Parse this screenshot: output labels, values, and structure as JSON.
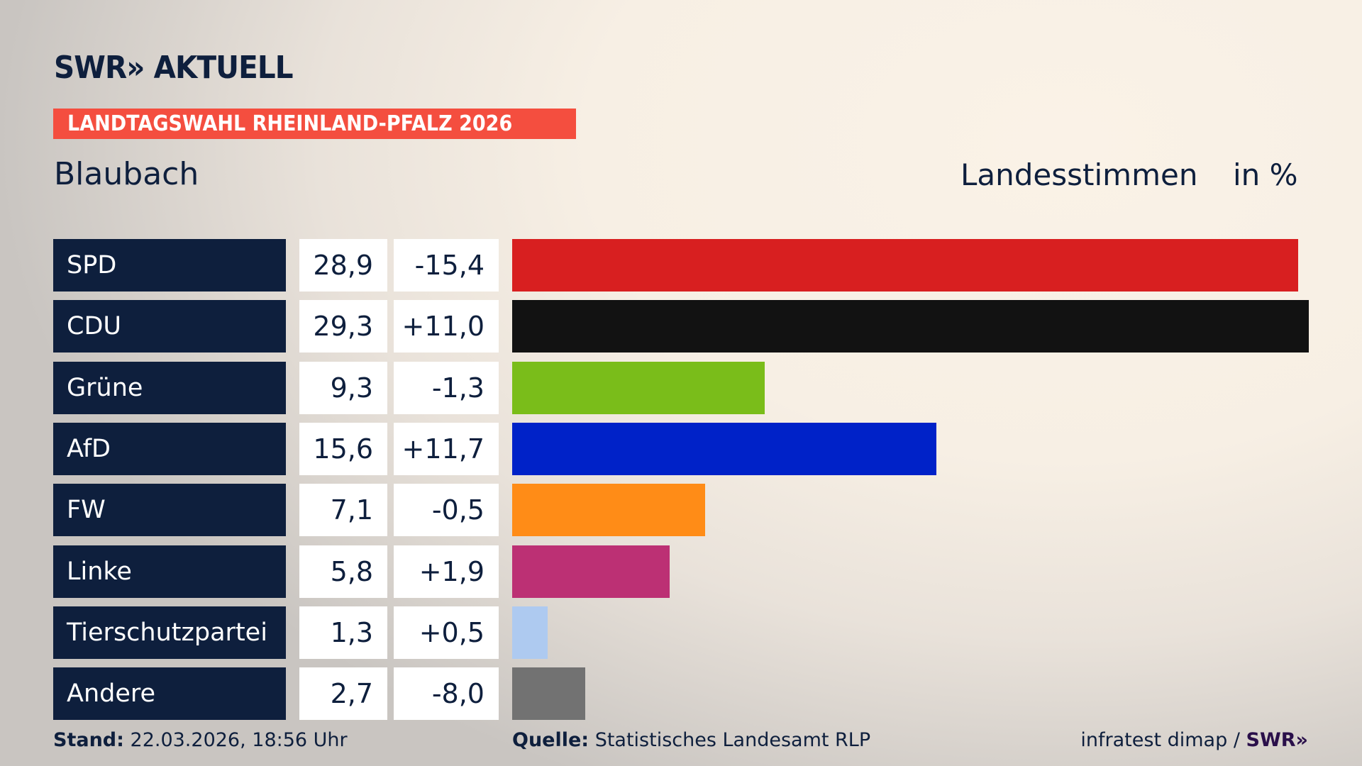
{
  "header": {
    "logo": "SWR» AKTUELL",
    "banner": "LANDTAGSWAHL RHEINLAND-PFALZ 2026",
    "region": "Blaubach",
    "measure": "Landesstimmen",
    "unit": "in %"
  },
  "chart_data": {
    "type": "bar",
    "orientation": "horizontal",
    "categories": [
      "SPD",
      "CDU",
      "Grüne",
      "AfD",
      "FW",
      "Linke",
      "Tierschutzpartei",
      "Andere"
    ],
    "values": [
      28.9,
      29.3,
      9.3,
      15.6,
      7.1,
      5.8,
      1.3,
      2.7
    ],
    "value_labels": [
      "28,9",
      "29,3",
      "9,3",
      "15,6",
      "7,1",
      "5,8",
      "1,3",
      "2,7"
    ],
    "change_labels": [
      "-15,4",
      "+11,0",
      "-1,3",
      "+11,7",
      "-0,5",
      "+1,9",
      "+0,5",
      "-8,0"
    ],
    "colors": [
      "#d81f20",
      "#121212",
      "#7abd1a",
      "#0022c8",
      "#ff8c17",
      "#bc3074",
      "#aecaf0",
      "#727272"
    ],
    "title": "Landesstimmen",
    "ylabel": "in %"
  },
  "footer": {
    "stand_label": "Stand:",
    "stand_value": "22.03.2026, 18:56 Uhr",
    "source_label": "Quelle:",
    "source_value": "Statistisches Landesamt RLP",
    "credit": "infratest dimap /",
    "credit_logo": "SWR»"
  }
}
